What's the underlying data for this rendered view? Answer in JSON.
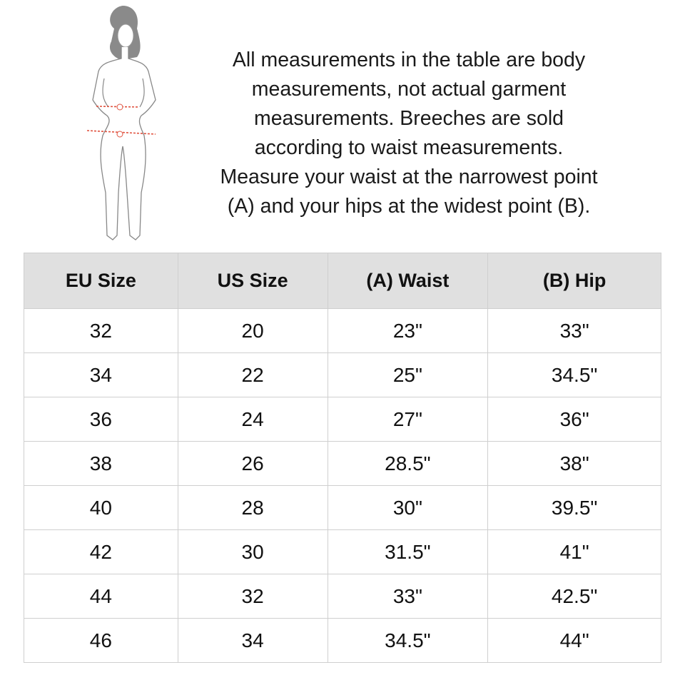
{
  "intro_lines": [
    "All measurements in the table are body",
    "measurements, not actual garment",
    "measurements. Breeches are sold",
    "according to waist measurements.",
    "Measure your waist at the narrowest point",
    "(A) and your hips at the widest point (B)."
  ],
  "figure": {
    "icon": "body-measurement-illustration",
    "markers": [
      "A",
      "B"
    ],
    "marker_color": "#e0523f"
  },
  "table": {
    "headers": [
      "EU Size",
      "US Size",
      "(A) Waist",
      "(B) Hip"
    ],
    "rows": [
      [
        "32",
        "20",
        "23\"",
        "33\""
      ],
      [
        "34",
        "22",
        "25\"",
        "34.5\""
      ],
      [
        "36",
        "24",
        "27\"",
        "36\""
      ],
      [
        "38",
        "26",
        "28.5\"",
        "38\""
      ],
      [
        "40",
        "28",
        "30\"",
        "39.5\""
      ],
      [
        "42",
        "30",
        "31.5\"",
        "41\""
      ],
      [
        "44",
        "32",
        "33\"",
        "42.5\""
      ],
      [
        "46",
        "34",
        "34.5\"",
        "44\""
      ]
    ]
  }
}
